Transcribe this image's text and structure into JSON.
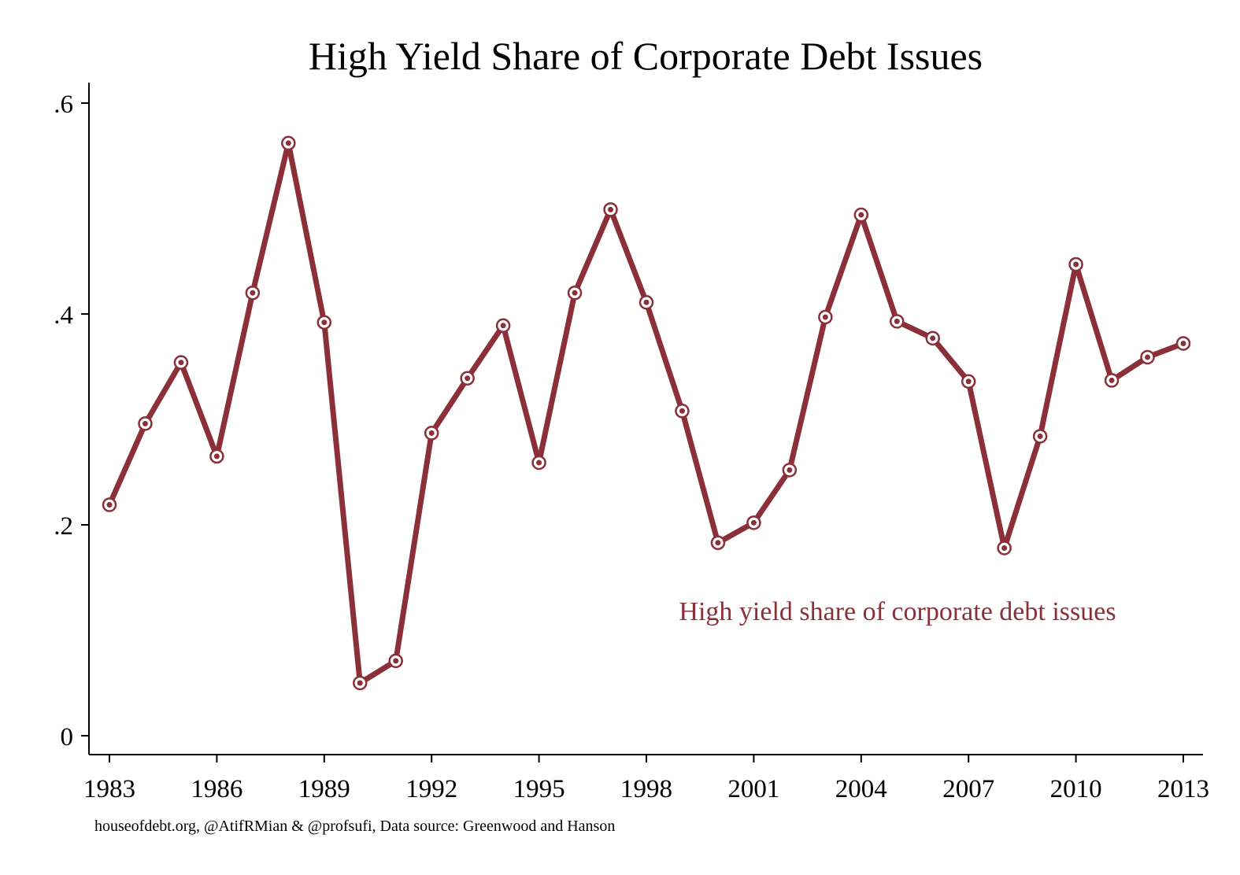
{
  "colors": {
    "series": "#8b2f39",
    "axis": "#000000",
    "background": "#ffffff"
  },
  "chart_data": {
    "type": "line",
    "title": "High Yield Share of Corporate Debt Issues",
    "xlabel": "",
    "ylabel": "",
    "xlim": [
      1983,
      2013
    ],
    "ylim": [
      0,
      0.6
    ],
    "grid": false,
    "legend": "none",
    "x_ticks": [
      1983,
      1986,
      1989,
      1992,
      1995,
      1998,
      2001,
      2004,
      2007,
      2010,
      2013
    ],
    "x_tick_labels": [
      "1983",
      "1986",
      "1989",
      "1992",
      "1995",
      "1998",
      "2001",
      "2004",
      "2007",
      "2010",
      "2013"
    ],
    "y_ticks": [
      0,
      0.2,
      0.4,
      0.6
    ],
    "y_tick_labels": [
      "0",
      ".2",
      ".4",
      ".6"
    ],
    "series": [
      {
        "annotation": "High yield share of corporate debt issues",
        "marker": "hollow-circle",
        "x": [
          1983,
          1984,
          1985,
          1986,
          1987,
          1988,
          1989,
          1990,
          1991,
          1992,
          1993,
          1994,
          1995,
          1996,
          1997,
          1998,
          1999,
          2000,
          2001,
          2002,
          2003,
          2004,
          2005,
          2006,
          2007,
          2008,
          2009,
          2010,
          2011,
          2012,
          2013
        ],
        "values": [
          0.219,
          0.296,
          0.354,
          0.265,
          0.42,
          0.562,
          0.392,
          0.05,
          0.071,
          0.287,
          0.339,
          0.389,
          0.259,
          0.42,
          0.499,
          0.411,
          0.308,
          0.183,
          0.202,
          0.252,
          0.397,
          0.494,
          0.393,
          0.377,
          0.336,
          0.178,
          0.284,
          0.447,
          0.337,
          0.359,
          0.372
        ]
      }
    ],
    "source_note": "houseofdebt.org, @AtifRMian & @profsufi, Data source: Greenwood and Hanson"
  }
}
